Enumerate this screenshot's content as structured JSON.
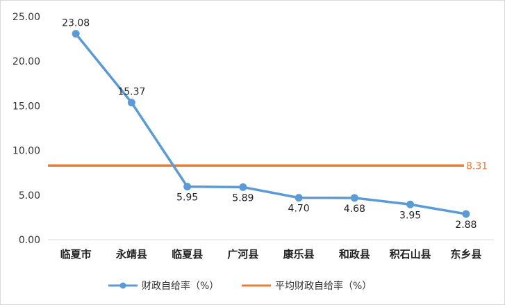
{
  "chart_data": {
    "type": "line",
    "title": "",
    "xlabel": "",
    "ylabel": "",
    "categories": [
      "临夏市",
      "永靖县",
      "临夏县",
      "广河县",
      "康乐县",
      "和政县",
      "积石山县",
      "东乡县"
    ],
    "ylim": [
      0,
      25
    ],
    "yticks": [
      "0.00",
      "5.00",
      "10.00",
      "15.00",
      "20.00",
      "25.00"
    ],
    "grid": false,
    "legend_position": "bottom",
    "series": [
      {
        "name": "财政自给率（%）",
        "values": [
          23.08,
          15.37,
          5.95,
          5.89,
          4.7,
          4.68,
          3.95,
          2.88
        ],
        "labels": [
          "23.08",
          "15.37",
          "5.95",
          "5.89",
          "4.70",
          "4.68",
          "3.95",
          "2.88"
        ],
        "color": "#5b9bd5",
        "marker": "circle"
      },
      {
        "name": "平均财政自给率（%）",
        "values": [
          8.31,
          8.31,
          8.31,
          8.31,
          8.31,
          8.31,
          8.31,
          8.31
        ],
        "end_label": "8.31",
        "color": "#ed7d31",
        "marker": "none"
      }
    ]
  }
}
